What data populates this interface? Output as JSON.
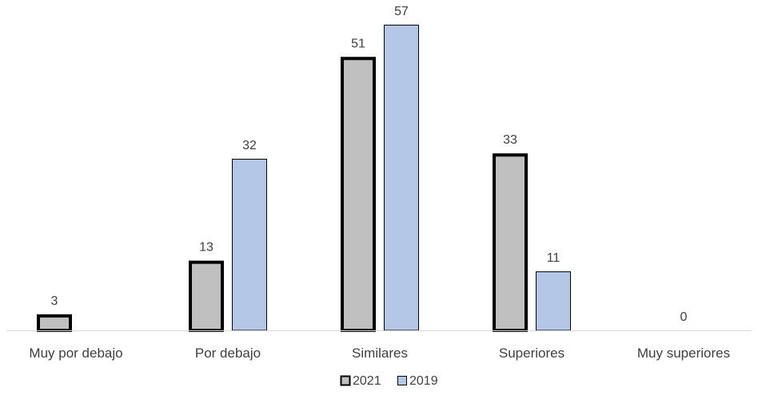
{
  "chart_data": {
    "type": "bar",
    "categories": [
      "Muy por debajo",
      "Por debajo",
      "Similares",
      "Superiores",
      "Muy superiores"
    ],
    "series": [
      {
        "name": "2021",
        "values": [
          3,
          13,
          51,
          33,
          null
        ],
        "fill": "#c0c0c0",
        "stroke": "#000000"
      },
      {
        "name": "2019",
        "values": [
          null,
          32,
          57,
          11,
          null
        ],
        "fill": "#b4c7e7",
        "stroke": "#000000"
      }
    ],
    "annotations": [
      {
        "category_index": 4,
        "text": "0"
      }
    ],
    "ylim": [
      0,
      58
    ],
    "grid": false,
    "legend": "bottom-center",
    "title": "",
    "xlabel": "",
    "ylabel": ""
  }
}
